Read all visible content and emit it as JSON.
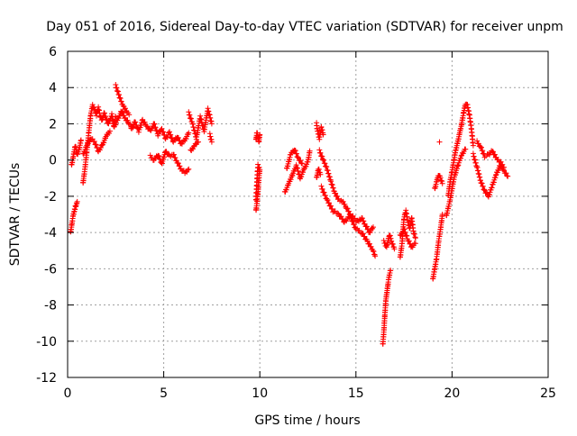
{
  "colors": {
    "series": "#ff0000",
    "axis": "#000000",
    "grid": "#a0a0a0",
    "background": "#ffffff"
  },
  "chart_data": {
    "type": "scatter",
    "title": "Day 051 of 2016, Sidereal Day-to-day VTEC variation (SDTVAR) for receiver unpm",
    "xlabel": "GPS time / hours",
    "ylabel": "SDTVAR / TECUs",
    "xlim": [
      0,
      25
    ],
    "ylim": [
      -12,
      6
    ],
    "xticks": [
      0,
      5,
      10,
      15,
      20,
      25
    ],
    "yticks": [
      -12,
      -10,
      -8,
      -6,
      -4,
      -2,
      0,
      2,
      4,
      6
    ],
    "grid": true,
    "marker": "plus",
    "series": [
      {
        "name": "SDTVAR",
        "traces": [
          {
            "x": [
              0.15,
              0.2,
              0.25,
              0.3,
              0.35,
              0.4,
              0.45,
              0.5
            ],
            "y": [
              -4.0,
              -3.7,
              -3.3,
              -3.0,
              -2.8,
              -2.6,
              -2.5,
              -2.3
            ]
          },
          {
            "x": [
              0.2,
              0.3,
              0.4,
              0.5,
              0.6,
              0.7
            ],
            "y": [
              -0.3,
              0.2,
              0.8,
              0.3,
              0.6,
              1.1
            ]
          },
          {
            "x": [
              0.8,
              0.9,
              1.0,
              1.1,
              1.2,
              1.3,
              1.4,
              1.5,
              1.6,
              1.7,
              1.8,
              1.9,
              2.0,
              2.1,
              2.2,
              2.3,
              2.4,
              2.5
            ],
            "y": [
              -1.3,
              -0.5,
              0.5,
              1.5,
              2.5,
              3.0,
              2.8,
              2.5,
              2.9,
              2.4,
              2.2,
              2.6,
              2.3,
              2.0,
              2.2,
              2.5,
              1.9,
              2.4
            ]
          },
          {
            "x": [
              0.8,
              1.0,
              1.2,
              1.4,
              1.6,
              1.8,
              2.0,
              2.2
            ],
            "y": [
              0.3,
              0.8,
              1.2,
              1.0,
              0.5,
              0.8,
              1.3,
              1.6
            ]
          },
          {
            "x": [
              2.5,
              2.6,
              2.7,
              2.8,
              2.9,
              3.0,
              3.1,
              3.2
            ],
            "y": [
              4.1,
              3.8,
              3.5,
              3.2,
              3.0,
              2.8,
              2.6,
              2.5
            ]
          },
          {
            "x": [
              2.4,
              2.6,
              2.8,
              3.0,
              3.2,
              3.4
            ],
            "y": [
              1.8,
              2.2,
              2.7,
              2.3,
              2.0,
              1.8
            ]
          },
          {
            "x": [
              3.3,
              3.5,
              3.7,
              3.9,
              4.1,
              4.3,
              4.5,
              4.7,
              4.9,
              5.1,
              5.3,
              5.5,
              5.7,
              5.9,
              6.1,
              6.3
            ],
            "y": [
              1.7,
              2.1,
              1.6,
              2.2,
              1.9,
              1.6,
              2.0,
              1.4,
              1.7,
              1.2,
              1.5,
              1.0,
              1.3,
              0.9,
              1.1,
              1.5
            ]
          },
          {
            "x": [
              4.3,
              4.5,
              4.7,
              4.9,
              5.1,
              5.3,
              5.5,
              5.7,
              5.9,
              6.1,
              6.3
            ],
            "y": [
              0.2,
              0.0,
              0.3,
              -0.2,
              0.5,
              0.2,
              0.3,
              -0.1,
              -0.5,
              -0.7,
              -0.5
            ]
          },
          {
            "x": [
              6.3,
              6.5,
              6.7,
              6.9,
              7.1,
              7.3,
              7.5
            ],
            "y": [
              2.6,
              2.0,
              1.2,
              2.4,
              1.6,
              2.8,
              2.0
            ]
          },
          {
            "x": [
              6.4,
              6.6,
              6.8
            ],
            "y": [
              0.5,
              0.8,
              1.0
            ]
          },
          {
            "x": [
              7.4,
              7.5
            ],
            "y": [
              1.4,
              1.0
            ]
          },
          {
            "x": [
              9.8,
              9.85,
              9.9,
              9.95,
              10.0
            ],
            "y": [
              1.1,
              1.5,
              1.3,
              1.0,
              1.4
            ]
          },
          {
            "x": [
              9.8,
              9.85,
              9.9,
              9.95,
              10.0,
              9.9,
              9.8
            ],
            "y": [
              -2.8,
              -2.4,
              -1.8,
              -1.0,
              -0.5,
              -0.3,
              -2.2
            ]
          },
          {
            "x": [
              11.3,
              11.5,
              11.7,
              11.9,
              12.1,
              12.3,
              12.5,
              12.6
            ],
            "y": [
              -1.8,
              -1.3,
              -0.8,
              -0.3,
              -1.0,
              -0.5,
              -0.1,
              0.5
            ]
          },
          {
            "x": [
              11.4,
              11.6,
              11.8,
              12.0,
              12.2
            ],
            "y": [
              -0.5,
              0.3,
              0.6,
              0.1,
              -0.2
            ]
          },
          {
            "x": [
              12.95,
              13.0,
              13.1,
              13.2,
              13.3
            ],
            "y": [
              2.0,
              1.6,
              1.2,
              1.8,
              1.4
            ]
          },
          {
            "x": [
              12.95,
              13.05,
              13.15
            ],
            "y": [
              -1.0,
              -0.5,
              -0.8
            ]
          },
          {
            "x": [
              13.1,
              13.3,
              13.5,
              13.7,
              13.9,
              14.1,
              14.3,
              14.5,
              14.7,
              14.9,
              15.1,
              15.3,
              15.5,
              15.7,
              15.9
            ],
            "y": [
              0.5,
              0.0,
              -0.5,
              -1.2,
              -1.8,
              -2.2,
              -2.3,
              -2.6,
              -3.0,
              -3.2,
              -3.4,
              -3.2,
              -3.6,
              -4.0,
              -3.7
            ]
          },
          {
            "x": [
              13.2,
              13.5,
              13.8,
              14.1,
              14.4,
              14.7,
              15.0,
              15.3,
              15.6,
              15.9,
              16.0
            ],
            "y": [
              -1.5,
              -2.2,
              -2.8,
              -3.0,
              -3.4,
              -3.1,
              -3.8,
              -4.0,
              -4.5,
              -5.0,
              -5.3
            ]
          },
          {
            "x": [
              16.4,
              16.45,
              16.5,
              16.55,
              16.6,
              16.65,
              16.7,
              16.75,
              16.8
            ],
            "y": [
              -10.2,
              -9.5,
              -8.6,
              -7.8,
              -7.4,
              -7.0,
              -6.6,
              -6.3,
              -6.1
            ]
          },
          {
            "x": [
              16.45,
              16.6,
              16.75,
              16.85,
              17.0
            ],
            "y": [
              -4.5,
              -4.8,
              -4.1,
              -4.5,
              -4.9
            ]
          },
          {
            "x": [
              17.3,
              17.4,
              17.5,
              17.6,
              17.7,
              17.8,
              17.9,
              18.0,
              18.1
            ],
            "y": [
              -5.4,
              -4.6,
              -3.2,
              -2.8,
              -3.4,
              -3.8,
              -3.2,
              -4.0,
              -4.3
            ]
          },
          {
            "x": [
              17.3,
              17.5,
              17.7,
              17.9,
              18.1
            ],
            "y": [
              -4.2,
              -3.8,
              -4.4,
              -4.8,
              -4.6
            ]
          },
          {
            "x": [
              19.0,
              19.1,
              19.2,
              19.3,
              19.4,
              19.5
            ],
            "y": [
              -6.6,
              -6.0,
              -5.4,
              -4.5,
              -3.8,
              -3.0
            ]
          },
          {
            "x": [
              19.1,
              19.2,
              19.3,
              19.4,
              19.5
            ],
            "y": [
              -1.6,
              -1.2,
              -0.8,
              -1.0,
              -1.3
            ]
          },
          {
            "x": [
              19.35
            ],
            "y": [
              1.0
            ]
          },
          {
            "x": [
              19.8,
              19.9,
              20.0,
              20.1,
              20.2,
              20.3,
              20.4,
              20.5,
              20.6,
              20.7,
              20.8,
              20.9,
              21.0,
              21.1
            ],
            "y": [
              -2.0,
              -1.2,
              -0.6,
              0.0,
              0.6,
              1.0,
              1.5,
              2.0,
              2.6,
              3.1,
              3.0,
              2.5,
              1.8,
              0.8
            ]
          },
          {
            "x": [
              19.7,
              19.9,
              20.1,
              20.3,
              20.5,
              20.7
            ],
            "y": [
              -3.1,
              -2.2,
              -1.0,
              -0.3,
              0.3,
              0.6
            ]
          },
          {
            "x": [
              21.1,
              21.3,
              21.5,
              21.7,
              21.9,
              22.1,
              22.3,
              22.5,
              22.7,
              22.9
            ],
            "y": [
              0.3,
              -0.4,
              -1.2,
              -1.7,
              -2.0,
              -1.4,
              -0.8,
              -0.3,
              -0.6,
              -0.9
            ]
          },
          {
            "x": [
              21.3,
              21.5,
              21.7,
              21.9,
              22.1,
              22.3,
              22.5,
              22.7
            ],
            "y": [
              1.0,
              0.7,
              0.2,
              0.3,
              0.5,
              0.1,
              -0.1,
              -0.4
            ]
          }
        ]
      }
    ]
  }
}
